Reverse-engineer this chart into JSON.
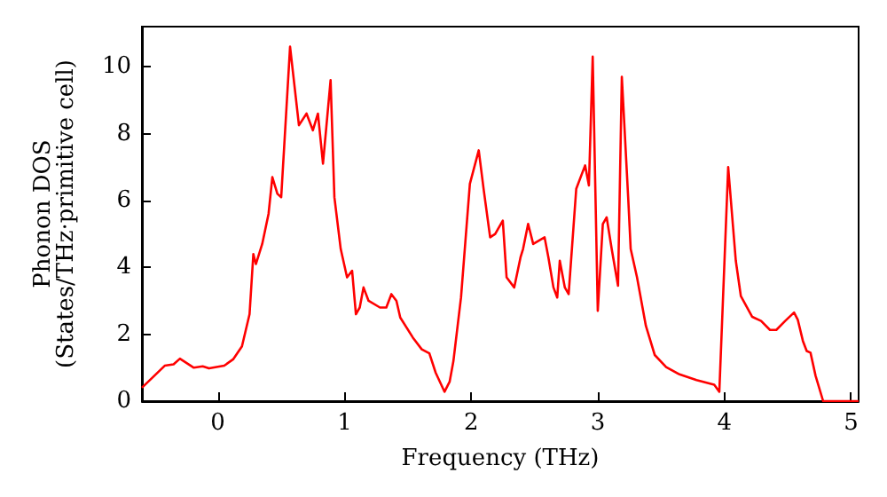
{
  "chart_data": {
    "type": "line",
    "xlabel": "Frequency (THz)",
    "ylabel": "Phonon DOS\n(States/THz·primitive cell)",
    "xlim": [
      -0.6,
      5.06
    ],
    "ylim": [
      0,
      11.2
    ],
    "xticks": [
      0,
      1,
      2,
      3,
      4,
      5
    ],
    "yticks": [
      0,
      2,
      4,
      6,
      8,
      10
    ],
    "grid": false,
    "marker": "none",
    "line_style": "solid",
    "x": [
      -0.6,
      -0.42,
      -0.35,
      -0.3,
      -0.19,
      -0.12,
      -0.07,
      0.05,
      0.12,
      0.19,
      0.25,
      0.28,
      0.3,
      0.35,
      0.4,
      0.43,
      0.47,
      0.5,
      0.57,
      0.64,
      0.7,
      0.75,
      0.79,
      0.83,
      0.89,
      0.92,
      0.97,
      1.02,
      1.06,
      1.09,
      1.12,
      1.15,
      1.19,
      1.28,
      1.33,
      1.37,
      1.41,
      1.44,
      1.54,
      1.61,
      1.67,
      1.72,
      1.79,
      1.83,
      1.86,
      1.92,
      1.99,
      2.06,
      2.1,
      2.15,
      2.19,
      2.25,
      2.28,
      2.34,
      2.39,
      2.41,
      2.45,
      2.49,
      2.58,
      2.61,
      2.65,
      2.68,
      2.7,
      2.74,
      2.77,
      2.83,
      2.9,
      2.93,
      2.96,
      3.0,
      3.04,
      3.07,
      3.11,
      3.16,
      3.19,
      3.24,
      3.26,
      3.31,
      3.38,
      3.45,
      3.54,
      3.64,
      3.78,
      3.92,
      3.96,
      4.03,
      4.09,
      4.13,
      4.22,
      4.29,
      4.36,
      4.41,
      4.48,
      4.55,
      4.58,
      4.62,
      4.65,
      4.68,
      4.72,
      4.78,
      5.06
    ],
    "series": [
      {
        "color": "#ff0000",
        "values": [
          0.4,
          1.06,
          1.1,
          1.27,
          1.0,
          1.04,
          0.98,
          1.06,
          1.25,
          1.64,
          2.6,
          4.4,
          4.1,
          4.7,
          5.6,
          6.7,
          6.2,
          6.1,
          10.6,
          8.25,
          8.6,
          8.1,
          8.6,
          7.1,
          9.6,
          6.1,
          4.55,
          3.7,
          3.9,
          2.6,
          2.8,
          3.4,
          3.0,
          2.8,
          2.8,
          3.2,
          3.0,
          2.5,
          1.9,
          1.55,
          1.43,
          0.85,
          0.28,
          0.58,
          1.2,
          3.1,
          6.5,
          7.5,
          6.3,
          4.9,
          5.0,
          5.4,
          3.7,
          3.4,
          4.3,
          4.55,
          5.3,
          4.7,
          4.9,
          4.3,
          3.4,
          3.1,
          4.2,
          3.4,
          3.2,
          6.35,
          7.05,
          6.45,
          10.3,
          2.7,
          5.3,
          5.5,
          4.55,
          3.45,
          9.7,
          6.1,
          4.55,
          3.7,
          2.25,
          1.38,
          1.02,
          0.81,
          0.63,
          0.49,
          0.28,
          7.0,
          4.2,
          3.14,
          2.52,
          2.4,
          2.13,
          2.13,
          2.4,
          2.65,
          2.43,
          1.8,
          1.5,
          1.45,
          0.76,
          0,
          0
        ]
      }
    ]
  }
}
